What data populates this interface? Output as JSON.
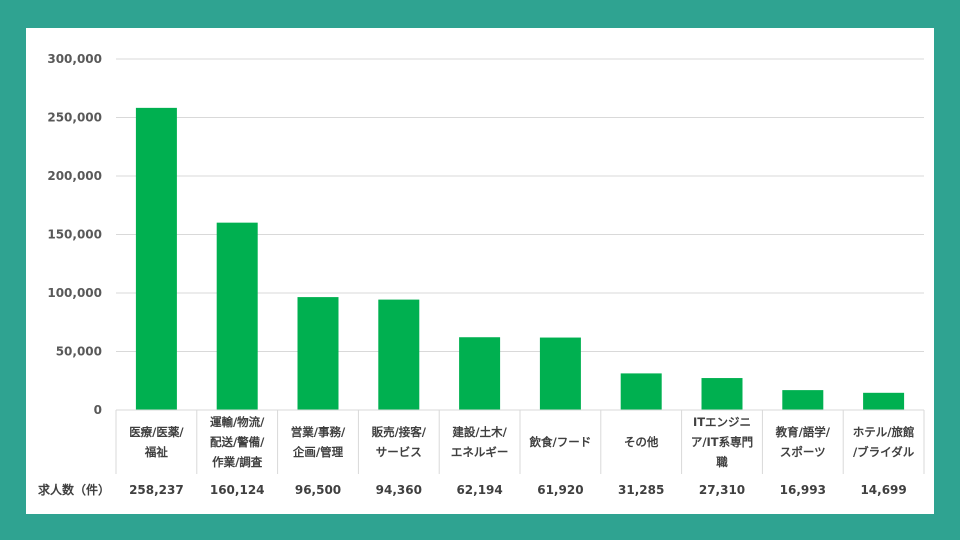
{
  "chart_data": {
    "type": "bar",
    "categories": [
      [
        "医療/医薬/",
        "福祉"
      ],
      [
        "運輸/物流/",
        "配送/警備/",
        "作業/調査"
      ],
      [
        "営業/事務/",
        "企画/管理"
      ],
      [
        "販売/接客/",
        "サービス"
      ],
      [
        "建設/土木/",
        "エネルギー"
      ],
      [
        "飲食/フード"
      ],
      [
        "その他"
      ],
      [
        "ITエンジニ",
        "ア/IT系専門",
        "職"
      ],
      [
        "教育/語学/",
        "スポーツ"
      ],
      [
        "ホテル/旅館",
        "/ブライダル"
      ]
    ],
    "values": [
      258237,
      160124,
      96500,
      94360,
      62194,
      61920,
      31285,
      27310,
      16993,
      14699
    ],
    "value_labels": [
      "258,237",
      "160,124",
      "96,500",
      "94,360",
      "62,194",
      "61,920",
      "31,285",
      "27,310",
      "16,993",
      "14,699"
    ],
    "ylim": [
      0,
      300000
    ],
    "yticks": [
      0,
      50000,
      100000,
      150000,
      200000,
      250000,
      300000
    ],
    "ytick_labels": [
      "0",
      "50,000",
      "100,000",
      "150,000",
      "200,000",
      "250,000",
      "300,000"
    ],
    "table_row_label": "求人数（件）",
    "grid": true,
    "bar_color": "#00b050"
  }
}
